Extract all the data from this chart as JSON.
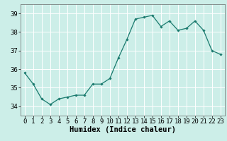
{
  "x": [
    0,
    1,
    2,
    3,
    4,
    5,
    6,
    7,
    8,
    9,
    10,
    11,
    12,
    13,
    14,
    15,
    16,
    17,
    18,
    19,
    20,
    21,
    22,
    23
  ],
  "y": [
    35.8,
    35.2,
    34.4,
    34.1,
    34.4,
    34.5,
    34.6,
    34.6,
    35.2,
    35.2,
    35.5,
    36.6,
    37.6,
    38.7,
    38.8,
    38.9,
    38.3,
    38.6,
    38.1,
    38.2,
    38.6,
    38.1,
    37.0,
    36.8
  ],
  "line_color": "#1a7a6e",
  "marker": "D",
  "marker_size": 1.8,
  "linewidth": 0.9,
  "background_color": "#cceee8",
  "grid_color": "#ffffff",
  "xlabel": "Humidex (Indice chaleur)",
  "ylabel": "",
  "ylim": [
    33.5,
    39.5
  ],
  "xlim": [
    -0.5,
    23.5
  ],
  "yticks": [
    34,
    35,
    36,
    37,
    38,
    39
  ],
  "xticks": [
    0,
    1,
    2,
    3,
    4,
    5,
    6,
    7,
    8,
    9,
    10,
    11,
    12,
    13,
    14,
    15,
    16,
    17,
    18,
    19,
    20,
    21,
    22,
    23
  ],
  "tick_label_fontsize": 6.5,
  "xlabel_fontsize": 7.5
}
